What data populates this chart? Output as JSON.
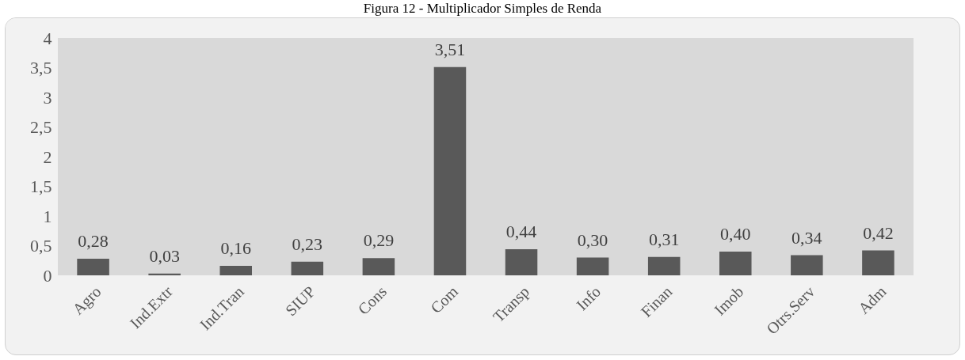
{
  "chart_data": {
    "type": "bar",
    "title": "Figura 12 - Multiplicador Simples de Renda",
    "categories": [
      "Agro",
      "Ind.Extr",
      "Ind.Tran",
      "SIUP",
      "Cons",
      "Com",
      "Transp",
      "Info",
      "Finan",
      "Imob",
      "Otrs.Serv",
      "Adm"
    ],
    "values": [
      0.28,
      0.03,
      0.16,
      0.23,
      0.29,
      3.51,
      0.44,
      0.3,
      0.31,
      0.4,
      0.34,
      0.42
    ],
    "value_labels": [
      "0,28",
      "0,03",
      "0,16",
      "0,23",
      "0,29",
      "3,51",
      "0,44",
      "0,30",
      "0,31",
      "0,40",
      "0,34",
      "0,42"
    ],
    "color": "#595959",
    "ylim": [
      0,
      4
    ],
    "yticks": [
      0,
      {
        "value": 0.5,
        "label": "0,5"
      },
      1,
      {
        "value": 1.5,
        "label": "1,5"
      },
      2,
      {
        "value": 2.5,
        "label": "2,5"
      },
      3,
      {
        "value": 3.5,
        "label": "3,5"
      },
      4
    ],
    "grid": false
  }
}
